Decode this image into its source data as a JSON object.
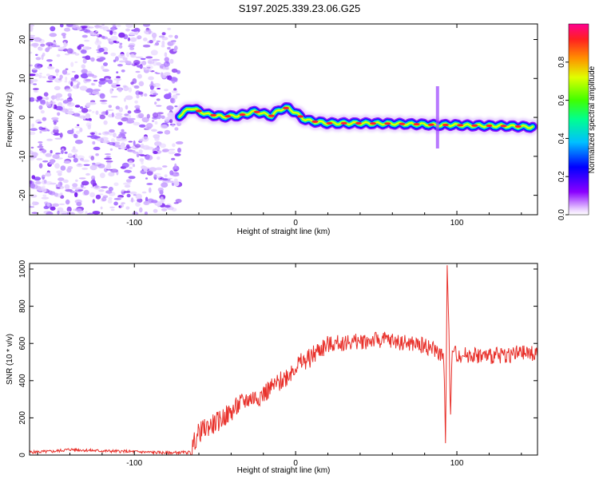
{
  "title": "S197.2025.339.23.06.G25",
  "colors": {
    "snr_line": "#e8302a",
    "axis": "#000000",
    "background": "#ffffff"
  },
  "chart_data": [
    {
      "type": "heatmap",
      "name": "spectrogram",
      "xlabel": "Height of straight line (km)",
      "ylabel": "Frequency (Hz)",
      "xlim": [
        -165,
        150
      ],
      "ylim": [
        -25,
        24
      ],
      "xticks": [
        -100,
        0,
        100
      ],
      "yticks": [
        -20,
        -10,
        0,
        10,
        20
      ],
      "noise_region_x": [
        -165,
        -72
      ],
      "signal_ridge": {
        "x": [
          -72,
          -65,
          -55,
          -45,
          -35,
          -25,
          -15,
          -10,
          -5,
          0,
          5,
          10,
          20,
          40,
          60,
          80,
          88,
          95,
          110,
          130,
          148
        ],
        "freq": [
          0.5,
          2.5,
          0.8,
          0.2,
          0.5,
          1.5,
          0.4,
          2.0,
          2.5,
          1.2,
          -0.4,
          -1.0,
          -1.5,
          -1.5,
          -1.6,
          -1.8,
          -2.0,
          -1.9,
          -2.1,
          -2.2,
          -2.5
        ]
      },
      "colorbar": {
        "label": "Normalized spectral amplitude",
        "range": [
          0,
          1
        ],
        "ticks": [
          "0.0",
          "0.2",
          "0.4",
          "0.6",
          "0.8"
        ]
      }
    },
    {
      "type": "line",
      "name": "snr",
      "xlabel": "Height of straight line (km)",
      "ylabel": "SNR (10 * v/v)",
      "xlim": [
        -165,
        150
      ],
      "ylim": [
        0,
        1030
      ],
      "xticks": [
        -100,
        0,
        100
      ],
      "yticks": [
        0,
        200,
        400,
        600,
        800,
        1000
      ],
      "series": [
        {
          "name": "SNR",
          "x": [
            -165,
            -150,
            -140,
            -120,
            -100,
            -80,
            -65,
            -62,
            -60,
            -55,
            -50,
            -45,
            -40,
            -35,
            -30,
            -25,
            -20,
            -15,
            -10,
            -5,
            0,
            5,
            10,
            15,
            20,
            25,
            30,
            40,
            50,
            60,
            70,
            80,
            88,
            92,
            93,
            94,
            95,
            96,
            97,
            100,
            110,
            120,
            130,
            140,
            150
          ],
          "values": [
            15,
            20,
            30,
            22,
            18,
            12,
            15,
            90,
            120,
            150,
            170,
            200,
            230,
            270,
            300,
            310,
            330,
            360,
            390,
            430,
            480,
            500,
            530,
            570,
            590,
            600,
            605,
            610,
            620,
            615,
            600,
            590,
            560,
            520,
            40,
            1020,
            700,
            180,
            560,
            540,
            540,
            530,
            540,
            545,
            550
          ]
        }
      ]
    }
  ]
}
